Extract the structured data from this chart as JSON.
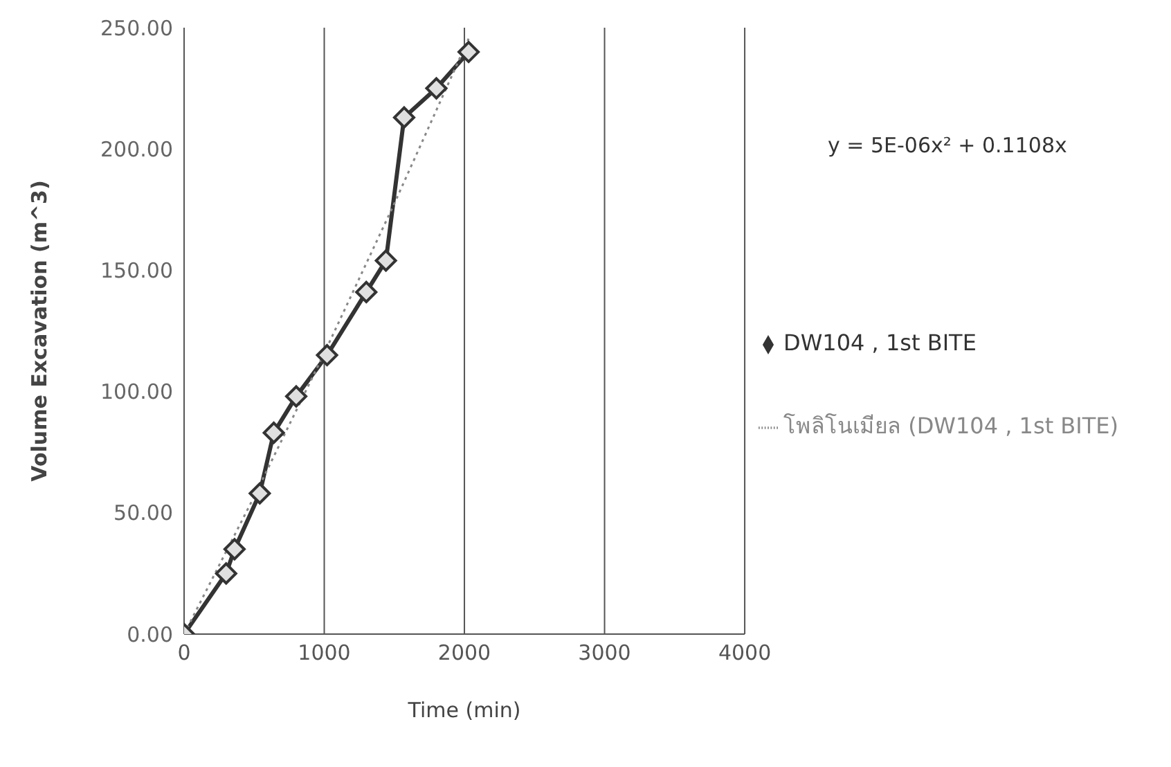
{
  "chart_data": {
    "type": "line",
    "xlabel": "Time (min)",
    "ylabel": "Volume Excavation (m^3)",
    "xlim": [
      0,
      4000
    ],
    "xticks": [
      0,
      1000,
      2000,
      3000,
      4000
    ],
    "ylim": [
      0,
      250
    ],
    "yticks": [
      {
        "value": 0,
        "label": "0.00"
      },
      {
        "value": 50,
        "label": "50.00"
      },
      {
        "value": 100,
        "label": "100.00"
      },
      {
        "value": 150,
        "label": "150.00"
      },
      {
        "value": 200,
        "label": "200.00"
      },
      {
        "value": 250,
        "label": "250.00"
      }
    ],
    "grid": "x",
    "legend": "right",
    "annotations": [
      "y = 5E-06x² + 0.1108x"
    ],
    "series": [
      {
        "name": "DW104 , 1st BITE",
        "color": "#333333",
        "marker": "diamond",
        "line_style": "solid",
        "x": [
          0,
          300,
          360,
          540,
          640,
          800,
          1020,
          1300,
          1440,
          1570,
          1800,
          2030
        ],
        "values": [
          0,
          25,
          35,
          58,
          83,
          98,
          115,
          141,
          154,
          213,
          225,
          240
        ]
      },
      {
        "name": "โพลิโนเมียล (DW104 , 1st BITE)",
        "color": "#888888",
        "marker": "none",
        "line_style": "dotted",
        "x": [
          0,
          500,
          1000,
          1500,
          2030
        ],
        "values": [
          0,
          56.7,
          115.8,
          177.5,
          245.5
        ]
      }
    ]
  }
}
